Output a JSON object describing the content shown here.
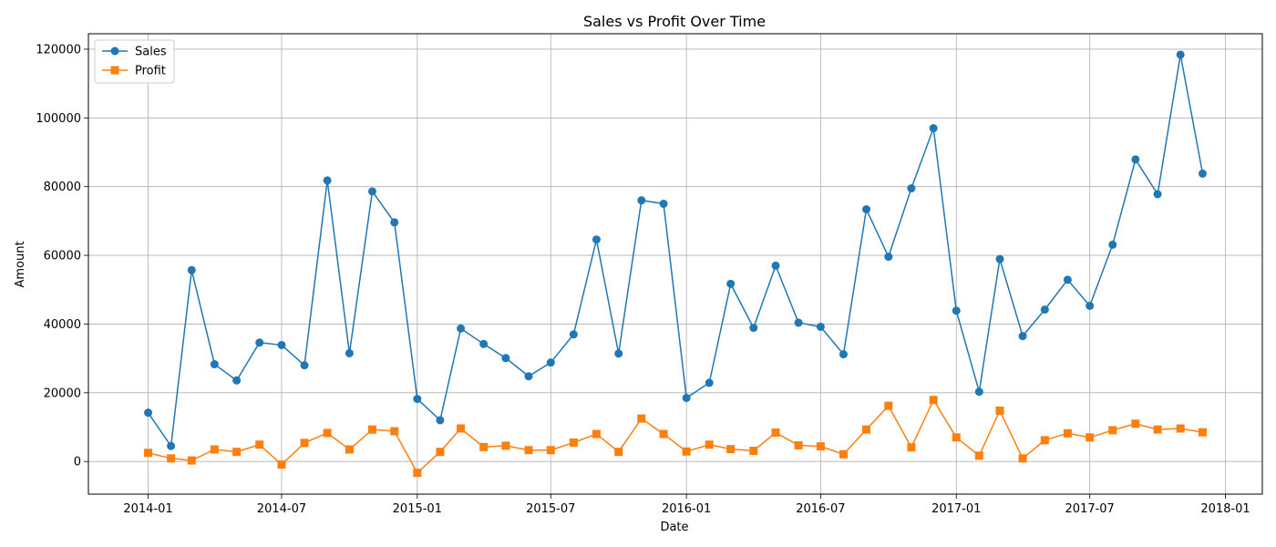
{
  "chart_data": {
    "type": "line",
    "title": "Sales vs Profit Over Time",
    "xlabel": "Date",
    "ylabel": "Amount",
    "x": [
      "2014-01",
      "2014-02",
      "2014-03",
      "2014-04",
      "2014-05",
      "2014-06",
      "2014-07",
      "2014-08",
      "2014-09",
      "2014-10",
      "2014-11",
      "2014-12",
      "2015-01",
      "2015-02",
      "2015-03",
      "2015-04",
      "2015-05",
      "2015-06",
      "2015-07",
      "2015-08",
      "2015-09",
      "2015-10",
      "2015-11",
      "2015-12",
      "2016-01",
      "2016-02",
      "2016-03",
      "2016-04",
      "2016-05",
      "2016-06",
      "2016-07",
      "2016-08",
      "2016-09",
      "2016-10",
      "2016-11",
      "2016-12",
      "2017-01",
      "2017-02",
      "2017-03",
      "2017-04",
      "2017-05",
      "2017-06",
      "2017-07",
      "2017-08",
      "2017-09",
      "2017-10",
      "2017-11",
      "2017-12"
    ],
    "series": [
      {
        "name": "Sales",
        "color": "#1f77b4",
        "marker": "circle",
        "values": [
          14200,
          4500,
          55700,
          28300,
          23600,
          34600,
          33900,
          28000,
          81800,
          31500,
          78600,
          69600,
          18200,
          12000,
          38700,
          34200,
          30100,
          24800,
          28800,
          37000,
          64600,
          31400,
          76000,
          75000,
          18500,
          22900,
          51700,
          38900,
          57000,
          40400,
          39200,
          31200,
          73400,
          59600,
          79500,
          97000,
          43900,
          20300,
          58900,
          36500,
          44200,
          52900,
          45300,
          63100,
          87900,
          77800,
          118400,
          83800
        ]
      },
      {
        "name": "Profit",
        "color": "#ff7f0e",
        "marker": "square",
        "values": [
          2500,
          900,
          300,
          3500,
          2800,
          4900,
          -900,
          5400,
          8300,
          3500,
          9300,
          8800,
          -3300,
          2800,
          9600,
          4200,
          4600,
          3300,
          3300,
          5500,
          8000,
          2800,
          12500,
          8000,
          2900,
          4900,
          3600,
          3100,
          8400,
          4700,
          4400,
          2100,
          9300,
          16200,
          4100,
          17900,
          7000,
          1700,
          14800,
          900,
          6200,
          8200,
          7000,
          9100,
          11000,
          9300,
          9600,
          8500
        ]
      }
    ],
    "x_ticks": [
      "2014-01",
      "2014-07",
      "2015-01",
      "2015-07",
      "2016-01",
      "2016-07",
      "2017-01",
      "2017-07",
      "2018-01"
    ],
    "y_ticks": [
      0,
      20000,
      40000,
      60000,
      80000,
      100000,
      120000
    ],
    "xlim": [
      "2013-10-12",
      "2018-02-20"
    ],
    "ylim": [
      -9500,
      124500
    ],
    "grid": true,
    "legend_position": "top-left"
  }
}
